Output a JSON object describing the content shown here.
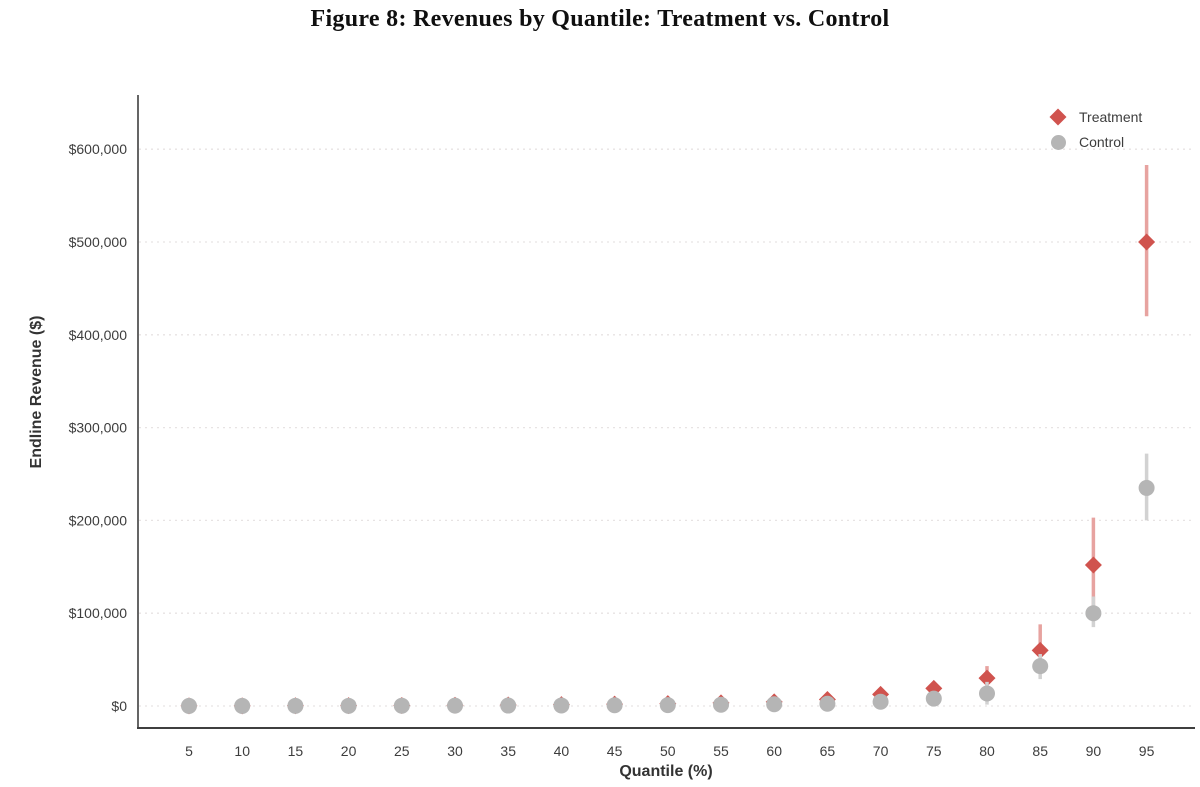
{
  "figure_label": "Figure 8",
  "chart_data": {
    "type": "scatter",
    "title": "Figure 8: Revenues by Quantile: Treatment vs. Control",
    "xlabel": "Quantile (%)",
    "ylabel": "Endline Revenue ($)",
    "x": [
      5,
      10,
      15,
      20,
      25,
      30,
      35,
      40,
      45,
      50,
      55,
      60,
      65,
      70,
      75,
      80,
      85,
      90,
      95
    ],
    "xtick_labels": [
      "5",
      "10",
      "15",
      "20",
      "25",
      "30",
      "35",
      "40",
      "45",
      "50",
      "55",
      "60",
      "65",
      "70",
      "75",
      "80",
      "85",
      "90",
      "95"
    ],
    "ytick_values": [
      0,
      100000,
      200000,
      300000,
      400000,
      500000,
      600000
    ],
    "ytick_labels": [
      "$0",
      "$100,000",
      "$200,000",
      "$300,000",
      "$400,000",
      "$500,000",
      "$600,000"
    ],
    "ylim": [
      0,
      635000
    ],
    "xlim": [
      0,
      100
    ],
    "grid": "horizontal-dashed",
    "legend_position": "top-right",
    "series": [
      {
        "name": "Treatment",
        "marker": "diamond",
        "values": [
          100,
          200,
          300,
          400,
          600,
          800,
          1100,
          1500,
          2000,
          2600,
          3400,
          4500,
          7000,
          12500,
          19000,
          30000,
          60000,
          152000,
          500000
        ],
        "ci_low": [
          0,
          0,
          100,
          200,
          300,
          400,
          600,
          900,
          1200,
          1600,
          2200,
          2800,
          4500,
          9000,
          14500,
          17500,
          36000,
          95000,
          420000
        ],
        "ci_high": [
          300,
          500,
          600,
          800,
          1000,
          1300,
          1700,
          2200,
          2900,
          3800,
          5000,
          6500,
          10000,
          16500,
          24500,
          43000,
          88000,
          203000,
          583000
        ]
      },
      {
        "name": "Control",
        "marker": "circle",
        "values": [
          100,
          100,
          200,
          200,
          300,
          400,
          500,
          600,
          800,
          1000,
          1400,
          1900,
          2400,
          4600,
          8000,
          13500,
          43000,
          100000,
          235000
        ],
        "ci_low": [
          0,
          0,
          0,
          100,
          100,
          200,
          200,
          300,
          400,
          500,
          700,
          900,
          1200,
          2800,
          5200,
          1500,
          29000,
          85000,
          200000
        ],
        "ci_high": [
          200,
          300,
          400,
          500,
          600,
          700,
          900,
          1100,
          1400,
          1800,
          2400,
          3200,
          4000,
          6800,
          11500,
          26000,
          56000,
          118000,
          272000
        ]
      }
    ],
    "colors": {
      "treatment": "#d0534e",
      "treatment_bar": "#e7a3a0",
      "control": "#b5b5b5",
      "control_bar": "#d2d2d2",
      "grid": "#e7e3e3",
      "axis": "#3f3f3f",
      "tick_text": "#3d3d3d",
      "legend_text": "#3d3d3d"
    }
  }
}
